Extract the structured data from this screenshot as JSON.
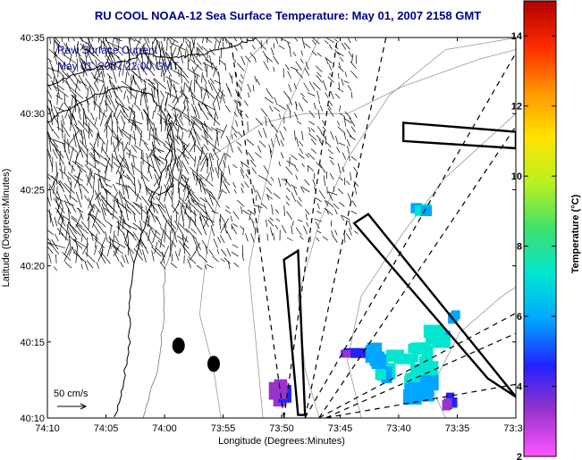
{
  "chart_data": {
    "type": "map",
    "title": "RU COOL  NOAA-12  Sea Surface Temperature:  May 01, 2007 2158 GMT",
    "legend_lines": [
      "Raw Surface Current",
      "May 01, 2007 22:00 GMT"
    ],
    "xlabel": "Longitude (Degrees:Minutes)",
    "ylabel": "Latitude (Degrees:Minutes)",
    "x_ticks": [
      {
        "v": -74.1667,
        "label": "74:10"
      },
      {
        "v": -74.0833,
        "label": "74:05"
      },
      {
        "v": -74.0,
        "label": "74:00"
      },
      {
        "v": -73.9167,
        "label": "73:55"
      },
      {
        "v": -73.8333,
        "label": "73:50"
      },
      {
        "v": -73.75,
        "label": "73:45"
      },
      {
        "v": -73.6667,
        "label": "73:40"
      },
      {
        "v": -73.5833,
        "label": "73:35"
      },
      {
        "v": -73.5,
        "label": "73:3"
      }
    ],
    "y_ticks": [
      {
        "v": 40.1667,
        "label": "40:10"
      },
      {
        "v": 40.25,
        "label": "40:15"
      },
      {
        "v": 40.3333,
        "label": "40:20"
      },
      {
        "v": 40.4167,
        "label": "40:25"
      },
      {
        "v": 40.5,
        "label": "40:30"
      },
      {
        "v": 40.5833,
        "label": "40:35"
      }
    ],
    "xlim": [
      -74.1667,
      -73.5
    ],
    "ylim": [
      40.1667,
      40.5833
    ],
    "colorbar": {
      "label": "Temperature (°C)",
      "range": [
        2,
        15
      ],
      "ticks": [
        {
          "v": 2,
          "label": "2"
        },
        {
          "v": 4,
          "label": "4"
        },
        {
          "v": 6,
          "label": "6"
        },
        {
          "v": 8,
          "label": "8"
        },
        {
          "v": 10,
          "label": "10"
        },
        {
          "v": 12,
          "label": "12"
        },
        {
          "v": 14,
          "label": "14"
        }
      ],
      "colors": [
        "#ff55ff",
        "#9933cc",
        "#2222ff",
        "#00a6ff",
        "#00e6d0",
        "#3fe06a",
        "#b8f020",
        "#ffe400",
        "#ff9500",
        "#ff2a00",
        "#b20000"
      ]
    },
    "scale_label": "50 cm/s",
    "sst_patches": [
      {
        "lon": -73.66,
        "lat": 40.234,
        "temp": 7.5
      },
      {
        "lon": -73.635,
        "lat": 40.244,
        "temp": 7.8
      },
      {
        "lon": -73.61,
        "lat": 40.256,
        "temp": 6.8
      },
      {
        "lon": -73.585,
        "lat": 40.276,
        "temp": 6.0
      },
      {
        "lon": -73.65,
        "lat": 40.212,
        "temp": 7.0
      },
      {
        "lon": -73.685,
        "lat": 40.222,
        "temp": 6.6
      },
      {
        "lon": -73.705,
        "lat": 40.234,
        "temp": 5.8
      },
      {
        "lon": -73.625,
        "lat": 40.222,
        "temp": 7.2
      },
      {
        "lon": -73.635,
        "lat": 40.395,
        "temp": 6.3
      },
      {
        "lon": -73.73,
        "lat": 40.235,
        "temp": 4.2
      },
      {
        "lon": -73.635,
        "lat": 40.198,
        "temp": 6.2
      },
      {
        "lon": -73.595,
        "lat": 40.185,
        "temp": 4.0
      },
      {
        "lon": -73.835,
        "lat": 40.19,
        "temp": 3.8
      }
    ],
    "wind_sectors": [
      {
        "apex_lon": -73.83,
        "apex_lat": 40.167,
        "az0": -8,
        "az1": 8
      },
      {
        "apex_lon": -73.8,
        "apex_lat": 40.167,
        "az0": 12,
        "az1": 30
      },
      {
        "apex_lon": -73.78,
        "apex_lat": 40.167,
        "az0": 34,
        "az1": 62
      },
      {
        "apex_lon": -73.77,
        "apex_lat": 40.167,
        "az0": 66,
        "az1": 80
      }
    ],
    "boundary_boxes": [
      [
        [
          -73.54,
          40.21
        ],
        [
          -73.5,
          40.19
        ],
        [
          -73.71,
          40.39
        ],
        [
          -73.73,
          40.38
        ]
      ],
      [
        [
          -73.81,
          40.17
        ],
        [
          -73.8,
          40.17
        ],
        [
          -73.81,
          40.35
        ],
        [
          -73.83,
          40.34
        ]
      ],
      [
        [
          -73.66,
          40.49
        ],
        [
          -73.5,
          40.48
        ],
        [
          -73.5,
          40.462
        ],
        [
          -73.66,
          40.47
        ]
      ]
    ],
    "stations": [
      {
        "lon": -73.98,
        "lat": 40.246
      },
      {
        "lon": -73.93,
        "lat": 40.226
      }
    ]
  }
}
